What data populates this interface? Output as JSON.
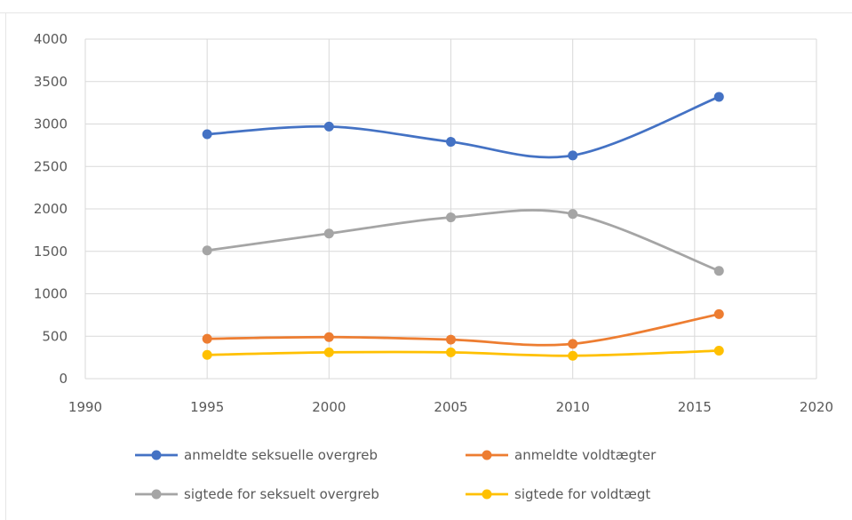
{
  "chart_data": {
    "type": "line",
    "title": "",
    "xlabel": "",
    "ylabel": "",
    "xlim": [
      1990,
      2020
    ],
    "ylim": [
      0,
      4000
    ],
    "x_ticks": [
      "1990",
      "1995",
      "2000",
      "2005",
      "2010",
      "2015",
      "2020"
    ],
    "y_ticks": [
      "0",
      "500",
      "1000",
      "1500",
      "2000",
      "2500",
      "3000",
      "3500",
      "4000"
    ],
    "grid": true,
    "smooth": true,
    "legend_position": "bottom",
    "x": [
      1995,
      2000,
      2005,
      2010,
      2016
    ],
    "series": [
      {
        "name": "anmeldte seksuelle overgreb",
        "color": "#4472c4",
        "values": [
          2880,
          2970,
          2790,
          2630,
          3320
        ]
      },
      {
        "name": "anmeldte voldtægter",
        "color": "#ed7d31",
        "values": [
          470,
          490,
          460,
          410,
          760
        ]
      },
      {
        "name": "sigtede for seksuelt overgreb",
        "color": "#a5a5a5",
        "values": [
          1510,
          1710,
          1900,
          1940,
          1270
        ]
      },
      {
        "name": "sigtede for voldtægt",
        "color": "#ffc000",
        "values": [
          280,
          310,
          310,
          270,
          330
        ]
      }
    ]
  }
}
